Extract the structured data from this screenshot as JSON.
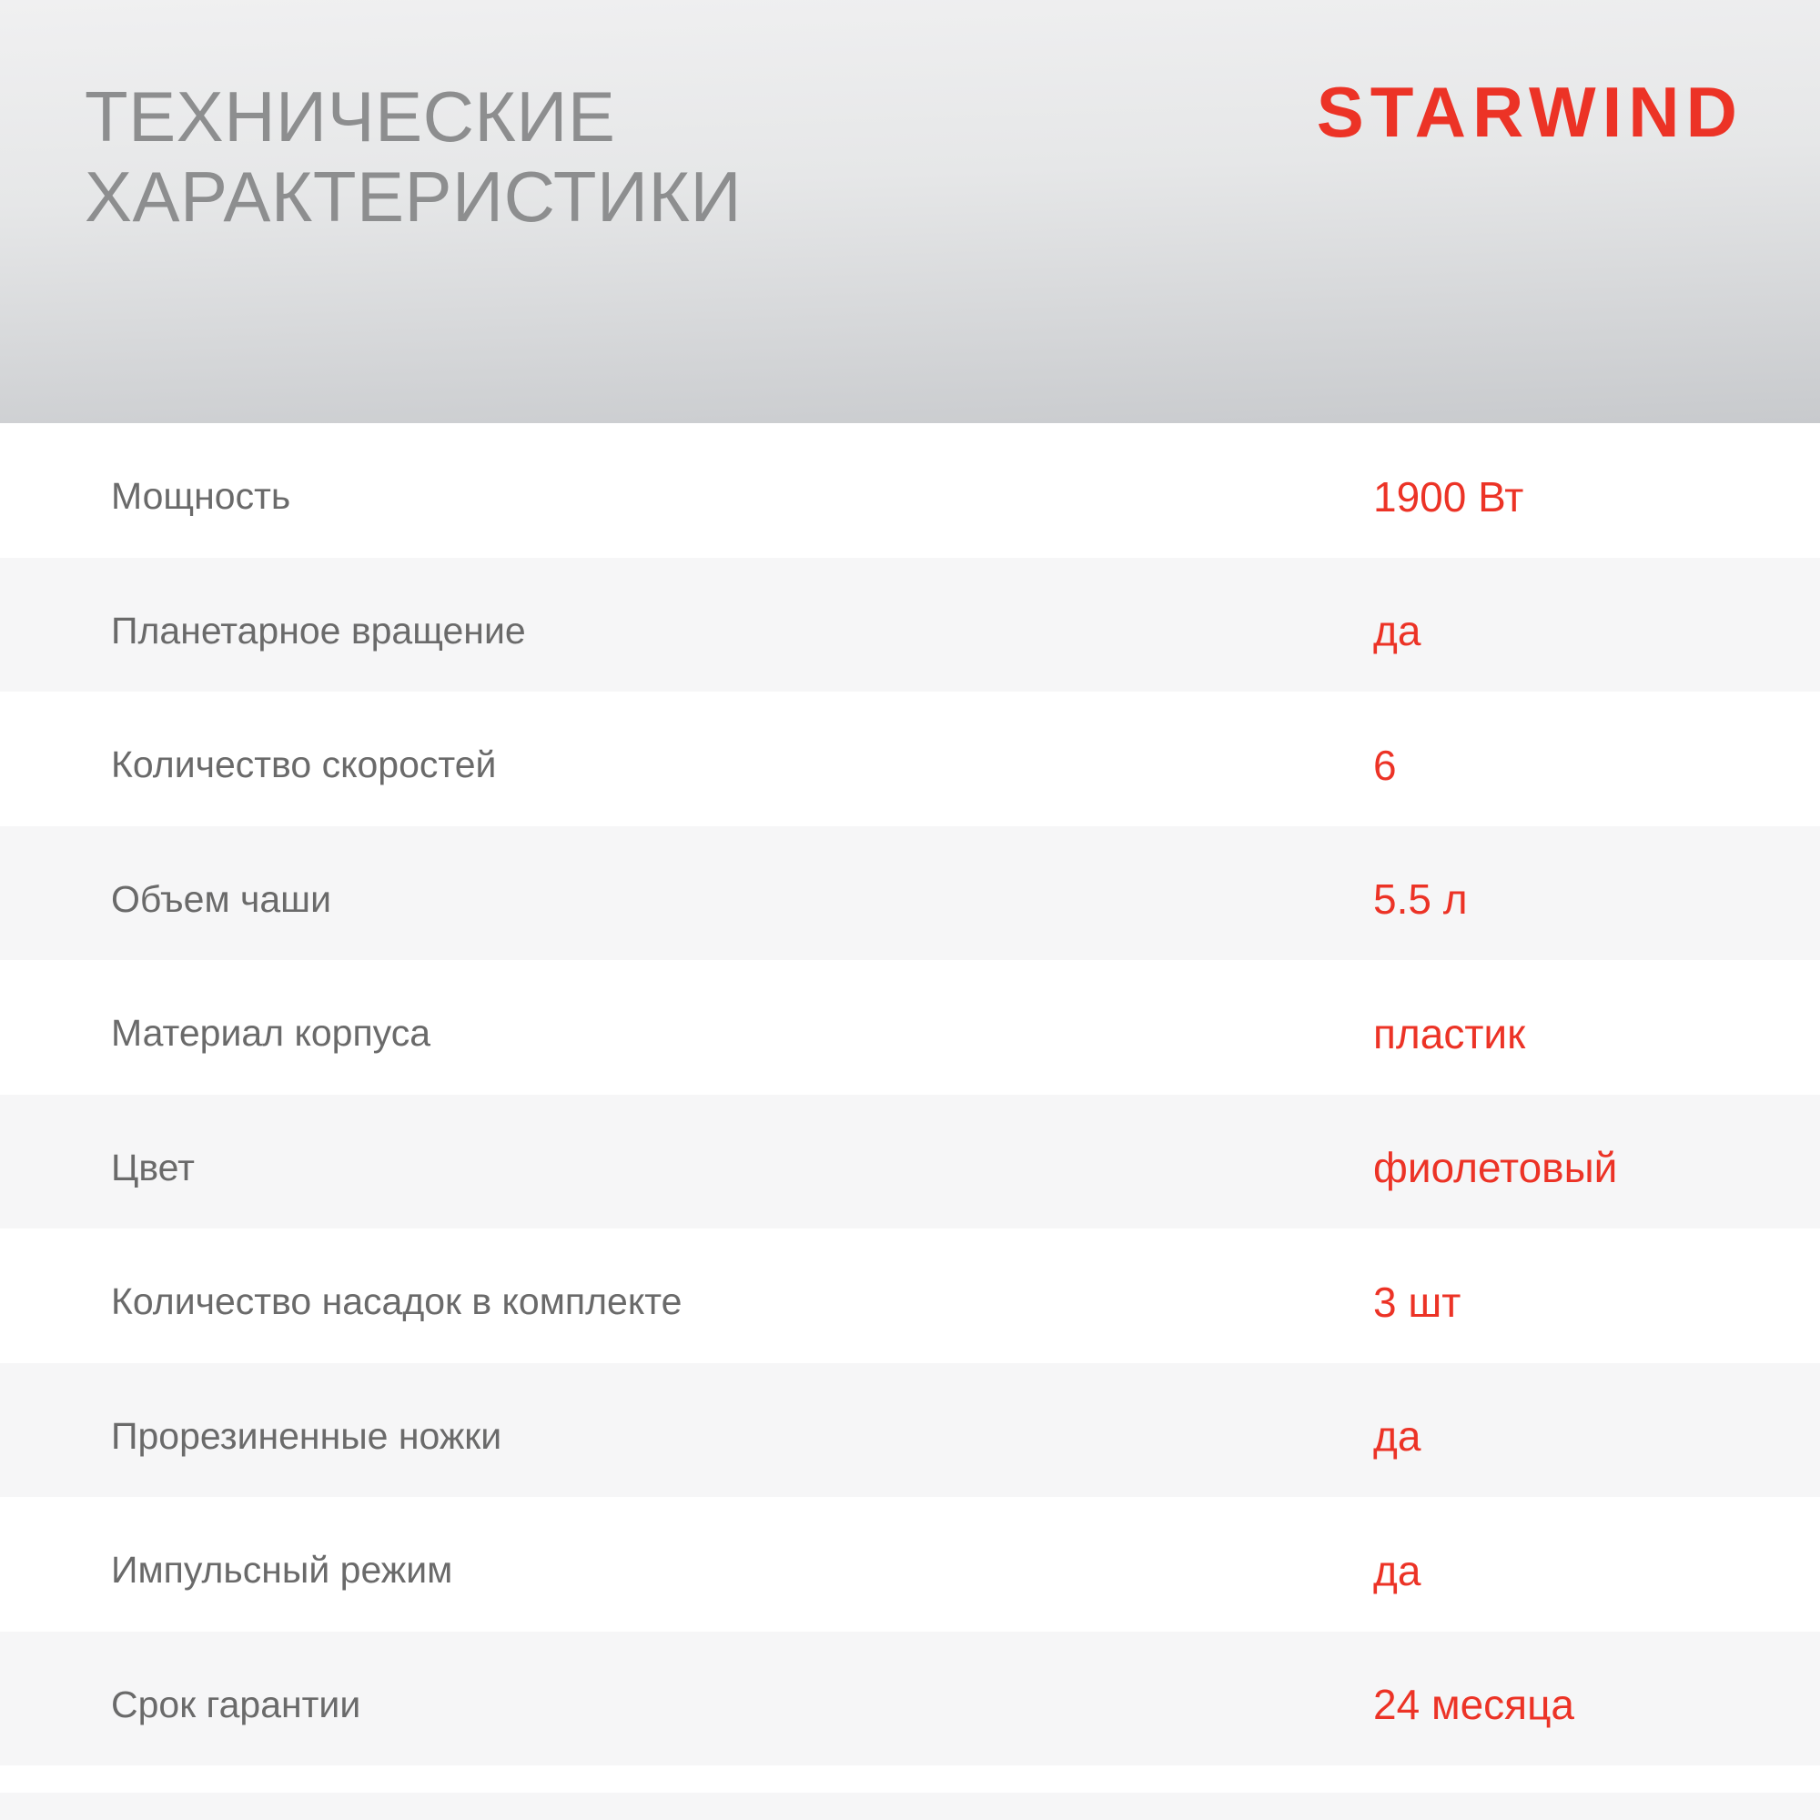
{
  "header": {
    "title_line1": "ТЕХНИЧЕСКИЕ",
    "title_line2": "ХАРАКТЕРИСТИКИ",
    "brand": "STARWIND"
  },
  "specs": {
    "rows": [
      {
        "label": "Мощность",
        "value": "1900 Вт"
      },
      {
        "label": "Планетарное вращение",
        "value": "да"
      },
      {
        "label": "Количество скоростей",
        "value": "6"
      },
      {
        "label": "Объем чаши",
        "value": "5.5 л"
      },
      {
        "label": "Материал корпуса",
        "value": "пластик"
      },
      {
        "label": "Цвет",
        "value": "фиолетовый"
      },
      {
        "label": "Количество насадок в комплекте",
        "value": "3 шт"
      },
      {
        "label": "Прорезиненные ножки",
        "value": "да"
      },
      {
        "label": "Импульсный режим",
        "value": "да"
      },
      {
        "label": "Срок гарантии",
        "value": "24 месяца"
      }
    ]
  },
  "colors": {
    "accent_red": "#ec3326",
    "title_gray": "#8d8e8f",
    "label_gray": "#6a6a6a",
    "row_alt_bg": "#f6f6f7",
    "header_gradient_top": "#f0f0f1",
    "header_gradient_mid": "#e6e7e8",
    "header_gradient_bottom": "#c8cacd"
  }
}
